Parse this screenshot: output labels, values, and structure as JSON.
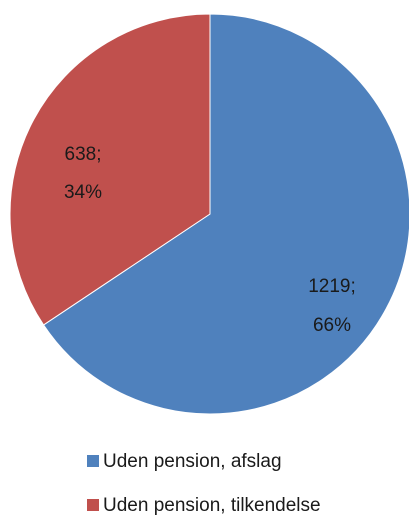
{
  "chart_data": {
    "type": "pie",
    "categories": [
      "Uden pension, afslag",
      "Uden pension, tilkendelse"
    ],
    "values": [
      1219,
      638
    ],
    "percentages": [
      66,
      34
    ],
    "data_labels": [
      {
        "value": "1219;",
        "percent": "66%"
      },
      {
        "value": "638;",
        "percent": "34%"
      }
    ],
    "colors": [
      "#4f81bd",
      "#c0504d"
    ],
    "start_angle_deg": 0,
    "direction": "clockwise",
    "legend_position": "bottom"
  }
}
